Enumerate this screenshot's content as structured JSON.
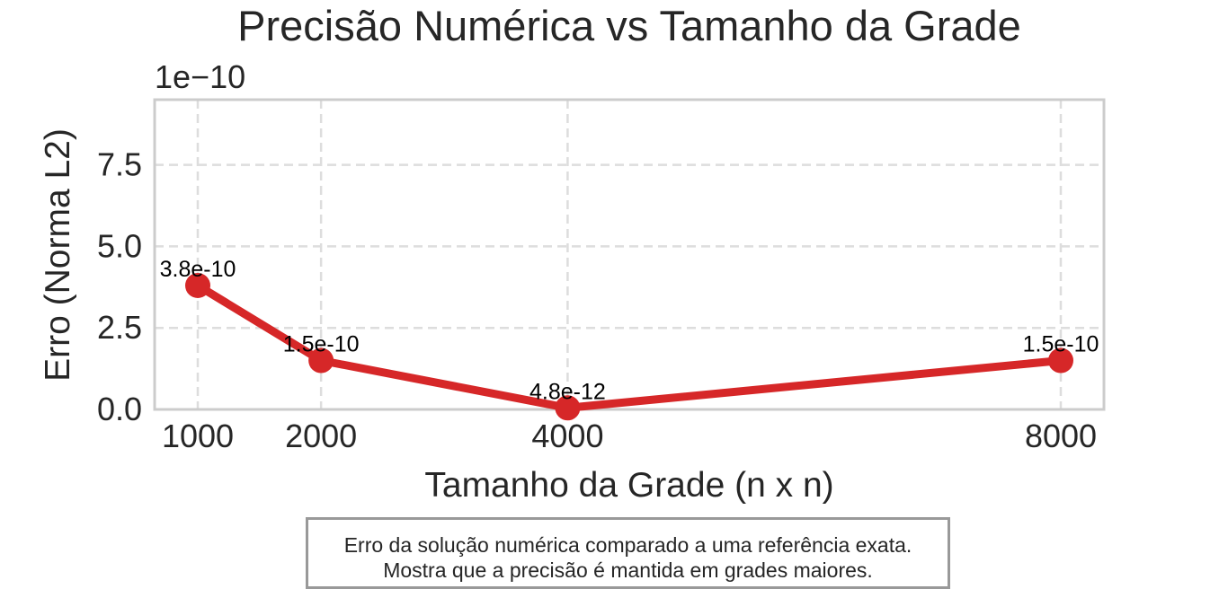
{
  "chart_data": {
    "type": "line",
    "title": "Precisão Numérica vs Tamanho da Grade",
    "xlabel": "Tamanho da Grade (n x n)",
    "ylabel": "Erro (Norma L2)",
    "y_offset_text": "1e−10",
    "x": [
      1000,
      2000,
      4000,
      8000
    ],
    "x_tick_labels": [
      "1000",
      "2000",
      "4000",
      "8000"
    ],
    "values": [
      3.8e-10,
      1.5e-10,
      4.8e-12,
      1.5e-10
    ],
    "data_labels": [
      "3.8e-10",
      "1.5e-10",
      "4.8e-12",
      "1.5e-10"
    ],
    "y_ticks": [
      0.0,
      2.5e-10,
      5e-10,
      7.5e-10
    ],
    "y_tick_labels": [
      "0.0",
      "2.5",
      "5.0",
      "7.5"
    ],
    "xlim": [
      650,
      8350
    ],
    "ylim": [
      0,
      9.5e-10
    ],
    "grid": true,
    "line_color": "#d62728"
  },
  "caption": {
    "line1": "Erro da solução numérica comparado a uma referência exata.",
    "line2": "Mostra que a precisão é mantida em grades maiores."
  }
}
